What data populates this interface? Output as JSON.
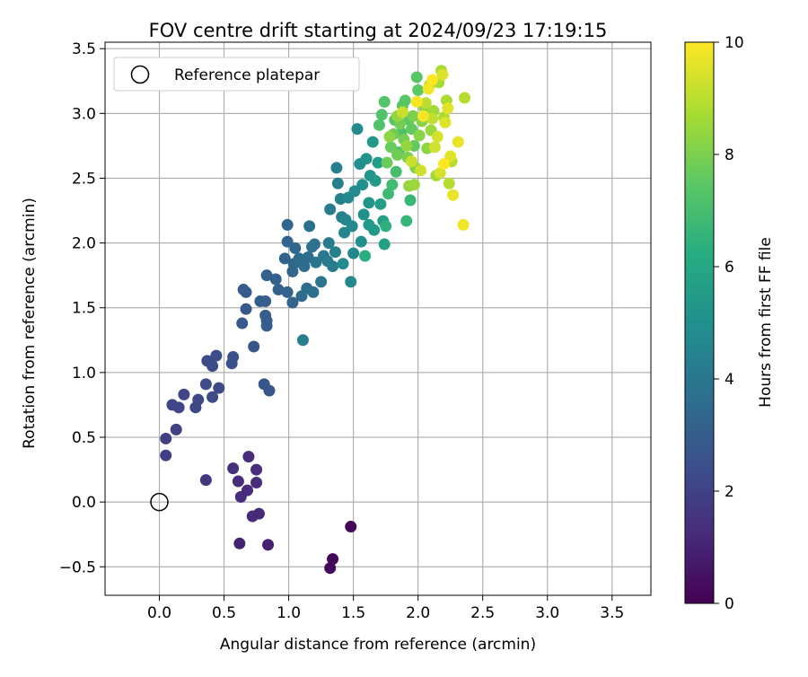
{
  "chart_data": {
    "type": "scatter",
    "title": "FOV centre drift starting at 2024/09/23 17:19:15",
    "xlabel": "Angular distance from reference (arcmin)",
    "ylabel": "Rotation from reference (arcmin)",
    "xlim": [
      -0.42,
      3.8
    ],
    "ylim": [
      -0.72,
      3.55
    ],
    "xticks": [
      0.0,
      0.5,
      1.0,
      1.5,
      2.0,
      2.5,
      3.0,
      3.5
    ],
    "yticks": [
      -0.5,
      0.0,
      0.5,
      1.0,
      1.5,
      2.0,
      2.5,
      3.0,
      3.5
    ],
    "grid": true,
    "legend": {
      "placement": "upper-left",
      "entries": [
        "Reference platepar"
      ]
    },
    "reference_point": {
      "name": "Reference platepar",
      "x": 0.0,
      "y": 0.0,
      "marker": "open-circle"
    },
    "colorbar": {
      "label": "Hours from first FF file",
      "range": [
        0,
        10
      ],
      "ticks": [
        0,
        2,
        4,
        6,
        8,
        10
      ],
      "colormap": "viridis",
      "colors": [
        "#440154",
        "#472c7a",
        "#3b518b",
        "#2c718e",
        "#21908d",
        "#27ad81",
        "#5cc863",
        "#aadc32",
        "#fde725"
      ]
    },
    "points": [
      [
        1.48,
        -0.19,
        0.1
      ],
      [
        1.34,
        -0.44,
        0.2
      ],
      [
        1.32,
        -0.51,
        0.2
      ],
      [
        0.62,
        -0.32,
        1.0
      ],
      [
        0.84,
        -0.33,
        0.9
      ],
      [
        0.72,
        -0.11,
        1.2
      ],
      [
        0.77,
        -0.09,
        1.2
      ],
      [
        0.63,
        0.04,
        1.3
      ],
      [
        0.68,
        0.09,
        1.3
      ],
      [
        0.75,
        0.15,
        1.3
      ],
      [
        0.61,
        0.16,
        1.3
      ],
      [
        0.57,
        0.26,
        1.4
      ],
      [
        0.75,
        0.25,
        1.3
      ],
      [
        0.69,
        0.35,
        1.3
      ],
      [
        0.36,
        0.17,
        1.6
      ],
      [
        0.05,
        0.36,
        1.9
      ],
      [
        0.05,
        0.49,
        1.9
      ],
      [
        0.13,
        0.56,
        2.0
      ],
      [
        0.1,
        0.75,
        2.1
      ],
      [
        0.15,
        0.73,
        2.1
      ],
      [
        0.19,
        0.83,
        2.1
      ],
      [
        0.28,
        0.73,
        2.2
      ],
      [
        0.3,
        0.79,
        2.2
      ],
      [
        0.36,
        0.91,
        2.3
      ],
      [
        0.41,
        0.81,
        2.3
      ],
      [
        0.46,
        0.88,
        2.3
      ],
      [
        0.37,
        1.09,
        2.3
      ],
      [
        0.41,
        1.05,
        2.3
      ],
      [
        0.44,
        1.13,
        2.4
      ],
      [
        0.56,
        1.07,
        2.5
      ],
      [
        0.57,
        1.12,
        2.5
      ],
      [
        0.81,
        0.91,
        2.7
      ],
      [
        0.85,
        0.86,
        2.7
      ],
      [
        0.64,
        1.38,
        2.8
      ],
      [
        0.67,
        1.49,
        2.8
      ],
      [
        0.73,
        1.2,
        2.7
      ],
      [
        0.65,
        1.64,
        2.9
      ],
      [
        0.67,
        1.62,
        2.9
      ],
      [
        0.78,
        1.55,
        3.0
      ],
      [
        0.82,
        1.55,
        3.0
      ],
      [
        0.82,
        1.44,
        3.0
      ],
      [
        0.83,
        1.4,
        3.0
      ],
      [
        0.83,
        1.36,
        3.0
      ],
      [
        0.83,
        1.75,
        3.1
      ],
      [
        0.9,
        1.72,
        3.1
      ],
      [
        0.92,
        1.64,
        3.2
      ],
      [
        0.99,
        1.62,
        3.2
      ],
      [
        0.97,
        1.88,
        3.2
      ],
      [
        0.99,
        2.01,
        3.3
      ],
      [
        0.99,
        2.14,
        3.3
      ],
      [
        1.03,
        1.54,
        3.3
      ],
      [
        1.03,
        1.78,
        3.3
      ],
      [
        1.04,
        1.84,
        3.4
      ],
      [
        1.05,
        1.96,
        3.4
      ],
      [
        1.08,
        1.88,
        3.5
      ],
      [
        1.1,
        1.59,
        3.5
      ],
      [
        1.12,
        1.82,
        3.6
      ],
      [
        1.14,
        1.65,
        3.6
      ],
      [
        1.15,
        1.89,
        3.6
      ],
      [
        1.16,
        2.13,
        3.7
      ],
      [
        1.18,
        1.97,
        3.7
      ],
      [
        1.19,
        1.62,
        3.7
      ],
      [
        1.2,
        1.99,
        3.8
      ],
      [
        1.21,
        1.85,
        3.9
      ],
      [
        1.25,
        1.7,
        3.9
      ],
      [
        1.27,
        1.9,
        4.0
      ],
      [
        1.3,
        1.86,
        4.1
      ],
      [
        1.31,
        2.0,
        4.1
      ],
      [
        1.32,
        2.26,
        4.2
      ],
      [
        1.34,
        1.82,
        4.2
      ],
      [
        1.36,
        1.93,
        4.3
      ],
      [
        1.37,
        2.58,
        4.3
      ],
      [
        1.38,
        2.46,
        4.3
      ],
      [
        1.4,
        2.34,
        4.4
      ],
      [
        1.41,
        2.2,
        4.4
      ],
      [
        1.43,
        2.08,
        4.6
      ],
      [
        1.44,
        2.18,
        4.6
      ],
      [
        1.46,
        2.35,
        4.7
      ],
      [
        1.48,
        1.7,
        4.7
      ],
      [
        1.49,
        2.13,
        4.7
      ],
      [
        1.5,
        1.92,
        4.7
      ],
      [
        1.51,
        2.4,
        4.8
      ],
      [
        1.53,
        2.88,
        4.8
      ],
      [
        1.55,
        2.61,
        4.9
      ],
      [
        1.57,
        2.45,
        5.0
      ],
      [
        1.58,
        2.22,
        5.0
      ],
      [
        1.6,
        2.65,
        5.1
      ],
      [
        1.62,
        2.31,
        5.2
      ],
      [
        1.63,
        2.52,
        5.2
      ],
      [
        1.65,
        2.78,
        5.3
      ],
      [
        1.66,
        2.1,
        5.4
      ],
      [
        1.67,
        2.48,
        5.4
      ],
      [
        1.69,
        2.62,
        5.5
      ],
      [
        1.71,
        2.3,
        5.6
      ],
      [
        1.73,
        2.17,
        5.7
      ],
      [
        1.74,
        1.99,
        5.7
      ],
      [
        1.11,
        1.25,
        4.3
      ],
      [
        1.42,
        1.84,
        4.8
      ],
      [
        1.56,
        2.01,
        5.0
      ],
      [
        1.62,
        2.14,
        5.3
      ],
      [
        1.59,
        1.9,
        6.3
      ],
      [
        1.75,
        2.13,
        6.4
      ],
      [
        1.91,
        2.17,
        6.6
      ],
      [
        1.94,
        2.33,
        6.7
      ],
      [
        1.77,
        2.38,
        6.8
      ],
      [
        1.8,
        2.45,
        6.9
      ],
      [
        1.83,
        2.55,
        7.0
      ],
      [
        1.85,
        2.7,
        7.1
      ],
      [
        1.87,
        2.85,
        7.1
      ],
      [
        1.7,
        2.91,
        7.2
      ],
      [
        1.72,
        2.99,
        7.2
      ],
      [
        1.74,
        3.09,
        7.3
      ],
      [
        1.82,
        2.95,
        7.3
      ],
      [
        1.88,
        3.06,
        7.4
      ],
      [
        1.9,
        3.1,
        7.4
      ],
      [
        1.99,
        3.28,
        7.4
      ],
      [
        2.0,
        3.18,
        7.5
      ],
      [
        1.93,
        2.95,
        7.5
      ],
      [
        1.95,
        2.88,
        7.6
      ],
      [
        1.97,
        2.75,
        7.6
      ],
      [
        1.76,
        2.62,
        7.7
      ],
      [
        1.79,
        2.74,
        7.7
      ],
      [
        1.81,
        2.84,
        7.8
      ],
      [
        1.84,
        2.68,
        7.8
      ],
      [
        1.86,
        2.92,
        7.9
      ],
      [
        1.89,
        2.8,
        7.9
      ],
      [
        1.92,
        2.66,
        8.0
      ],
      [
        1.96,
        2.98,
        8.0
      ],
      [
        1.98,
        2.58,
        8.1
      ],
      [
        2.01,
        2.83,
        8.2
      ],
      [
        2.03,
        2.94,
        8.2
      ],
      [
        2.05,
        3.04,
        8.3
      ],
      [
        2.07,
        2.73,
        8.3
      ],
      [
        1.78,
        2.82,
        8.3
      ],
      [
        1.84,
        2.98,
        8.4
      ],
      [
        1.91,
        2.75,
        8.4
      ],
      [
        1.93,
        2.44,
        8.4
      ],
      [
        1.97,
        2.45,
        8.5
      ],
      [
        2.1,
        2.87,
        8.5
      ],
      [
        2.12,
        3.02,
        8.6
      ],
      [
        2.14,
        2.52,
        8.6
      ],
      [
        2.16,
        3.24,
        8.7
      ],
      [
        2.18,
        3.33,
        8.7
      ],
      [
        2.2,
        2.97,
        8.8
      ],
      [
        2.22,
        3.1,
        8.8
      ],
      [
        2.26,
        2.63,
        8.9
      ],
      [
        2.24,
        2.46,
        8.9
      ],
      [
        2.36,
        3.12,
        8.9
      ],
      [
        2.06,
        3.08,
        9.0
      ],
      [
        2.09,
        3.22,
        9.0
      ],
      [
        2.11,
        2.96,
        9.1
      ],
      [
        1.88,
        3.01,
        9.2
      ],
      [
        1.95,
        2.63,
        9.2
      ],
      [
        2.02,
        2.56,
        9.3
      ],
      [
        2.13,
        2.74,
        9.3
      ],
      [
        2.15,
        2.82,
        9.4
      ],
      [
        2.17,
        2.54,
        9.4
      ],
      [
        2.19,
        3.3,
        9.5
      ],
      [
        2.21,
        2.93,
        9.5
      ],
      [
        2.23,
        3.04,
        9.6
      ],
      [
        2.25,
        2.67,
        9.6
      ],
      [
        2.27,
        2.37,
        9.7
      ],
      [
        2.31,
        2.78,
        9.7
      ],
      [
        2.35,
        2.14,
        9.8
      ],
      [
        2.08,
        3.19,
        9.8
      ],
      [
        1.99,
        3.09,
        9.9
      ],
      [
        2.04,
        2.98,
        9.9
      ],
      [
        2.11,
        3.26,
        10.0
      ],
      [
        2.2,
        2.61,
        10.0
      ]
    ]
  }
}
